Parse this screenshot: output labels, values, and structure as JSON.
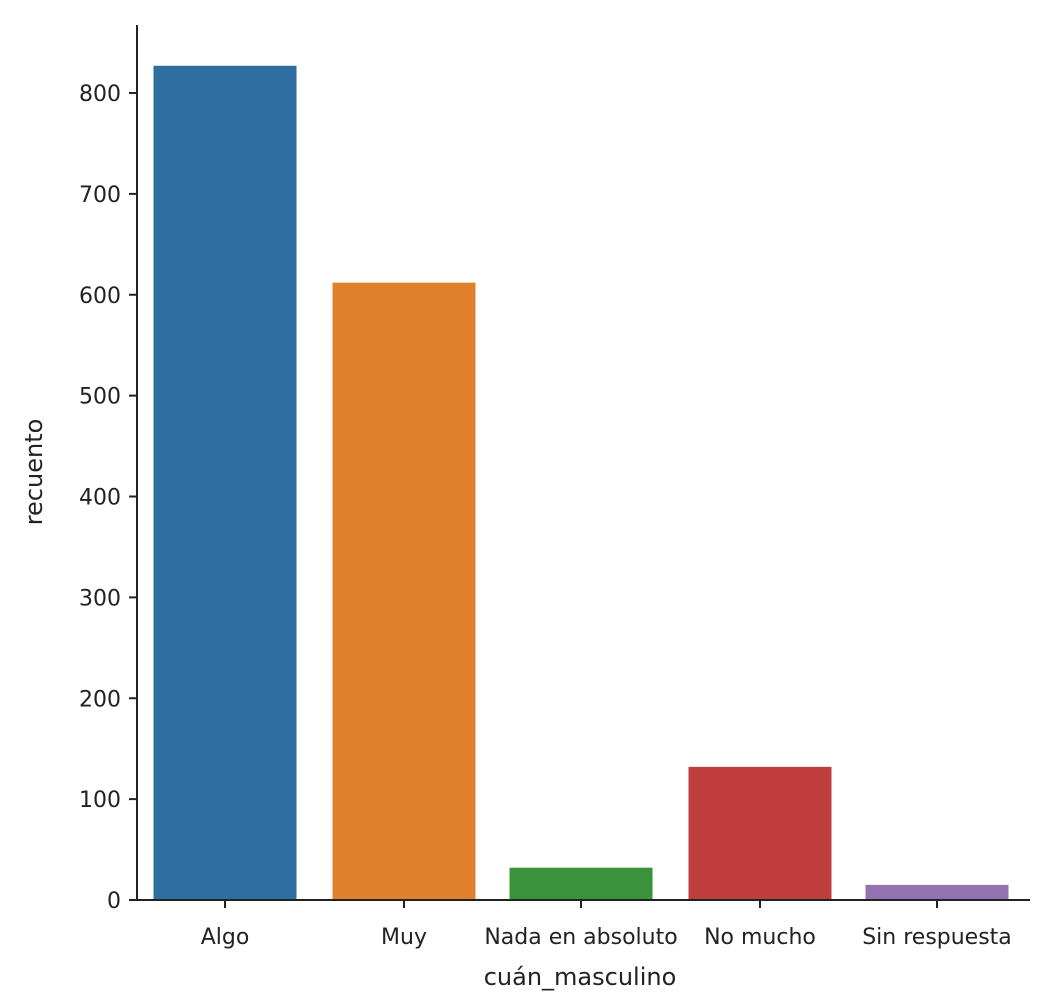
{
  "chart_data": {
    "type": "bar",
    "title": "",
    "xlabel": "cuán_masculino",
    "ylabel": "recuento",
    "categories": [
      "Algo",
      "Muy",
      "Nada en absoluto",
      "No mucho",
      "Sin respuesta"
    ],
    "values": [
      827,
      612,
      32,
      132,
      15
    ],
    "colors": [
      "#2f6f9f",
      "#e1812c",
      "#3a923a",
      "#c03d3e",
      "#9372b2"
    ],
    "ylim": [
      0,
      870
    ],
    "yticks": [
      0,
      100,
      200,
      300,
      400,
      500,
      600,
      700,
      800
    ],
    "grid": false,
    "legend": null
  }
}
